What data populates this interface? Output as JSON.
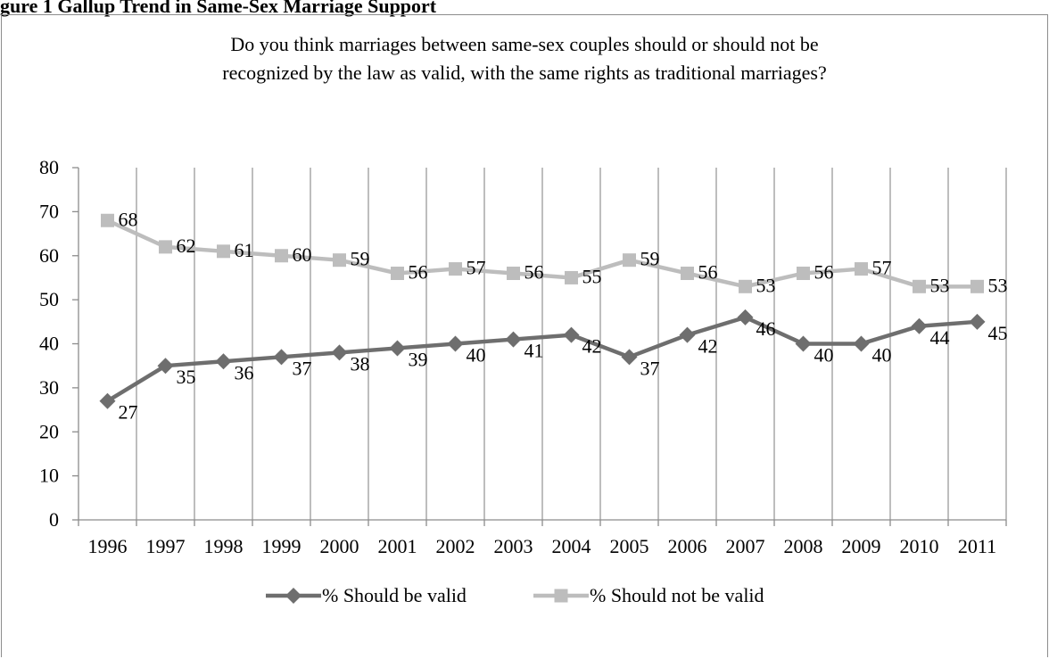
{
  "figure_header": "gure 1 Gallup Trend in Same-Sex Marriage Support",
  "chart_data": {
    "type": "line",
    "title_lines": [
      "Do you think marriages between same-sex couples should or should not be",
      "recognized by the law as valid, with the same rights as traditional marriages?"
    ],
    "categories": [
      "1996",
      "1997",
      "1998",
      "1999",
      "2000",
      "2001",
      "2002",
      "2003",
      "2004",
      "2005",
      "2006",
      "2007",
      "2008",
      "2009",
      "2010",
      "2011"
    ],
    "ylim": [
      0,
      80
    ],
    "yticks": [
      "0",
      "10",
      "20",
      "30",
      "40",
      "50",
      "60",
      "70",
      "80"
    ],
    "grid": "vertical",
    "legend": "bottom",
    "series": [
      {
        "name": "% Should be valid",
        "color": "#6e6e6e",
        "marker": "diamond",
        "values": [
          27,
          35,
          36,
          37,
          38,
          39,
          40,
          41,
          42,
          37,
          42,
          46,
          40,
          40,
          44,
          45
        ],
        "labels": [
          "27",
          "35",
          "36",
          "37",
          "38",
          "39",
          "40",
          "41",
          "42",
          "37",
          "42",
          "46",
          "40",
          "40",
          "44",
          "45"
        ]
      },
      {
        "name": "% Should not be valid",
        "color": "#bdbdbd",
        "marker": "square",
        "values": [
          68,
          62,
          61,
          60,
          59,
          56,
          57,
          56,
          55,
          59,
          56,
          53,
          56,
          57,
          53,
          53
        ],
        "labels": [
          "68",
          "62",
          "61",
          "60",
          "59",
          "56",
          "57",
          "56",
          "55",
          "59",
          "56",
          "53",
          "56",
          "57",
          "53",
          "53"
        ]
      }
    ]
  }
}
